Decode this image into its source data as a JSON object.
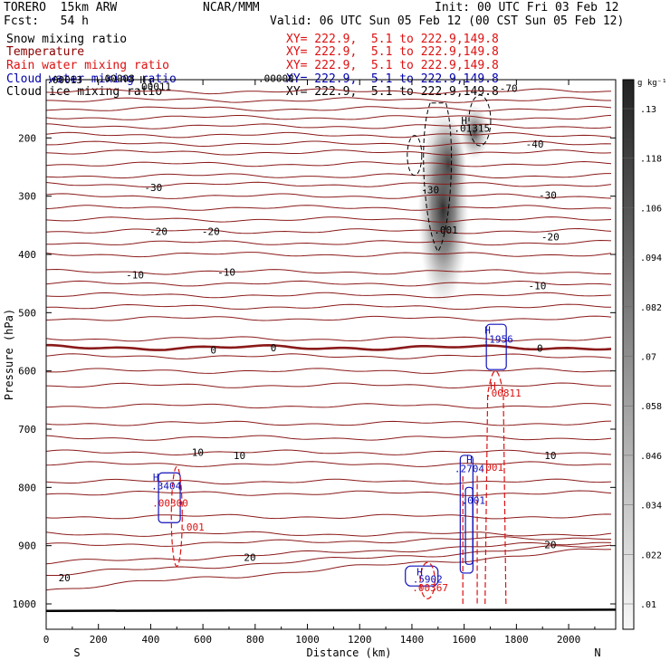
{
  "header": {
    "model": "TORERO  15km ARW",
    "org": "NCAR/MMM",
    "init": "Init: 00 UTC Fri 03 Feb 12",
    "fcst": "Fcst:   54 h",
    "valid": "Valid: 06 UTC Sun 05 Feb 12 (00 CST Sun 05 Feb 12)"
  },
  "fields": [
    {
      "name": "Snow mixing ratio",
      "xy": "XY= 222.9,  5.1 to 222.9,149.8",
      "color": "#000000"
    },
    {
      "name": "Temperature",
      "xy": "XY= 222.9,  5.1 to 222.9,149.8",
      "color": "#8b0000"
    },
    {
      "name": "Rain water mixing ratio",
      "xy": "XY= 222.9,  5.1 to 222.9,149.8",
      "color": "#dd0000"
    },
    {
      "name": "Cloud water mixing ratio",
      "xy": "XY= 222.9,  5.1 to 222.9,149.8",
      "color": "#0000aa"
    },
    {
      "name": "Cloud ice mixing ratio",
      "xy": "XY= 222.9,  5.1 to 222.9,149.8",
      "color": "#000000"
    }
  ],
  "colors": {
    "temp": "#8b1a1a",
    "rain": "#dd1111",
    "cloud": "#1010bb",
    "ice": "#000000",
    "axis": "#000000"
  },
  "chart_data": {
    "type": "cross-section",
    "xlabel": "Distance (km)",
    "ylabel": "Pressure (hPa)",
    "xlim": [
      0,
      2180
    ],
    "ylim": [
      1050,
      100
    ],
    "xticks": [
      0,
      200,
      400,
      600,
      800,
      1000,
      1200,
      1400,
      1600,
      1800,
      2000
    ],
    "yticks": [
      200,
      300,
      400,
      500,
      600,
      700,
      800,
      900,
      1000
    ],
    "x_end_labels": {
      "left": "S",
      "right": "N"
    },
    "colorbar": {
      "unit": "g kg⁻¹",
      "ticks": [
        ".01",
        ".022",
        ".034",
        ".046",
        ".058",
        ".07",
        ".082",
        ".094",
        ".106",
        ".118",
        ".13"
      ]
    },
    "isotherms": [
      {
        "label": "20",
        "p": 950
      },
      {
        "label": "10",
        "p": 740
      },
      {
        "label": "0",
        "p": 560
      },
      {
        "label": "-10",
        "p": 450
      },
      {
        "label": "-20",
        "p": 360
      },
      {
        "label": "-30",
        "p": 280
      },
      {
        "label": "-40",
        "p": 210
      },
      {
        "label": "-70",
        "p": 120
      }
    ],
    "temp_labels": [
      {
        "text": "-70",
        "x": 1770,
        "p": 115
      },
      {
        "text": "-40",
        "x": 1870,
        "p": 210
      },
      {
        "text": "-30",
        "x": 410,
        "p": 285
      },
      {
        "text": "-30",
        "x": 1470,
        "p": 289
      },
      {
        "text": "-30",
        "x": 1920,
        "p": 298
      },
      {
        "text": "-20",
        "x": 430,
        "p": 360
      },
      {
        "text": "-20",
        "x": 630,
        "p": 360
      },
      {
        "text": "-20",
        "x": 1930,
        "p": 370
      },
      {
        "text": "-10",
        "x": 340,
        "p": 435
      },
      {
        "text": "-10",
        "x": 690,
        "p": 430
      },
      {
        "text": "-10",
        "x": 1880,
        "p": 454
      },
      {
        "text": "0",
        "x": 640,
        "p": 564
      },
      {
        "text": "0",
        "x": 870,
        "p": 560
      },
      {
        "text": "0",
        "x": 1890,
        "p": 561
      },
      {
        "text": "10",
        "x": 580,
        "p": 740
      },
      {
        "text": "10",
        "x": 740,
        "p": 745
      },
      {
        "text": "10",
        "x": 1930,
        "p": 745
      },
      {
        "text": "20",
        "x": 70,
        "p": 955
      },
      {
        "text": "20",
        "x": 780,
        "p": 920
      },
      {
        "text": "20",
        "x": 1930,
        "p": 898
      }
    ],
    "annotations": [
      {
        "text": "H",
        "x": 1600,
        "p": 170,
        "color": "#000000"
      },
      {
        "text": ".01315",
        "x": 1630,
        "p": 183,
        "color": "#000000"
      },
      {
        "text": ".001",
        "x": 1530,
        "p": 358,
        "color": "#000000"
      },
      {
        "text": "H",
        "x": 1690,
        "p": 530,
        "color": "#1010bb"
      },
      {
        "text": ".1956",
        "x": 1730,
        "p": 545,
        "color": "#1010bb"
      },
      {
        "text": "H",
        "x": 1710,
        "p": 625,
        "color": "#dd1111"
      },
      {
        "text": ".00811",
        "x": 1750,
        "p": 638,
        "color": "#dd1111"
      },
      {
        "text": "H",
        "x": 1620,
        "p": 752,
        "color": "#1010bb"
      },
      {
        "text": ".2704",
        "x": 1620,
        "p": 768,
        "color": "#1010bb"
      },
      {
        "text": ".001",
        "x": 1705,
        "p": 765,
        "color": "#dd1111"
      },
      {
        "text": ".001",
        "x": 1635,
        "p": 822,
        "color": "#1010bb"
      },
      {
        "text": "H",
        "x": 420,
        "p": 782,
        "color": "#1010bb"
      },
      {
        "text": ".3404",
        "x": 460,
        "p": 797,
        "color": "#1010bb"
      },
      {
        "text": ".00300",
        "x": 475,
        "p": 827,
        "color": "#dd1111"
      },
      {
        "text": ".001",
        "x": 560,
        "p": 868,
        "color": "#dd1111"
      },
      {
        "text": "H",
        "x": 1430,
        "p": 945,
        "color": "#1010bb"
      },
      {
        "text": ".5902",
        "x": 1460,
        "p": 957,
        "color": "#1010bb"
      },
      {
        "text": ".00367",
        "x": 1470,
        "p": 972,
        "color": "#dd1111"
      },
      {
        "text": "H",
        "x": 370,
        "p": 100,
        "color": "#000000"
      },
      {
        "text": ".00011",
        "x": 410,
        "p": 112,
        "color": "#000000"
      },
      {
        "text": ".00013",
        "x": 70,
        "p": 100,
        "color": "#000000"
      },
      {
        "text": ".00008",
        "x": 270,
        "p": 98,
        "color": "#000000"
      },
      {
        "text": ".00008",
        "x": 880,
        "p": 98,
        "color": "#000000"
      }
    ]
  }
}
